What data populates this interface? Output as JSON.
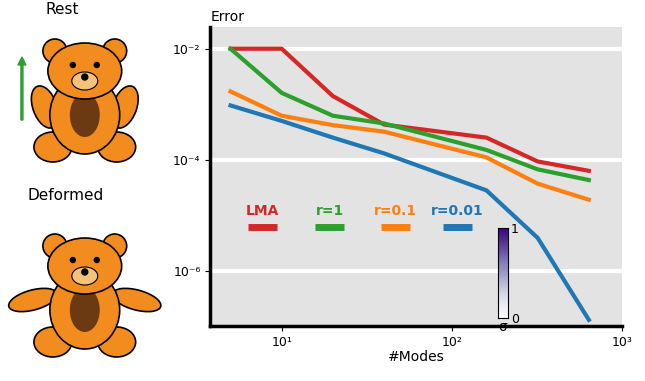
{
  "chart_data": {
    "type": "line",
    "y_label": "Error",
    "x_label": "#Modes",
    "annotations": [
      "Rest",
      "Deformed"
    ],
    "x": [
      5,
      10,
      20,
      40,
      160,
      320,
      640
    ],
    "series": [
      {
        "name": "LMA",
        "color": "#d62728",
        "values": [
          0.01,
          0.01,
          0.0014,
          0.00043,
          0.00025,
          9.3e-05,
          6.3e-05
        ]
      },
      {
        "name": "r=1",
        "color": "#2ca02c",
        "values": [
          0.01,
          0.0016,
          0.00062,
          0.00045,
          0.00015,
          6.7e-05,
          4.3e-05
        ]
      },
      {
        "name": "r=0.1",
        "color": "#ff7f0e",
        "values": [
          0.0017,
          0.00062,
          0.00042,
          0.00032,
          0.00011,
          3.7e-05,
          1.9e-05
        ]
      },
      {
        "name": "r=0.01",
        "color": "#1f77b4",
        "values": [
          0.00095,
          0.0005,
          0.00025,
          0.00013,
          2.8e-05,
          3.9e-06,
          1.3e-07
        ]
      }
    ],
    "log": true,
    "grid": true,
    "xlim": [
      3.8,
      1000
    ],
    "ylim": [
      1e-07,
      0.025
    ],
    "xticks": [
      {
        "value": 10,
        "label": "10¹"
      },
      {
        "value": 100,
        "label": "10²"
      },
      {
        "value": 1000,
        "label": "10³"
      }
    ],
    "yticks": [
      {
        "value": 1e-06,
        "label": "10⁻⁶"
      },
      {
        "value": 0.0001,
        "label": "10⁻⁴"
      },
      {
        "value": 0.01,
        "label": "10⁻²"
      }
    ],
    "colorbar": {
      "label": "σ",
      "range": [
        0,
        1
      ],
      "ticks": [
        0,
        1
      ]
    }
  }
}
